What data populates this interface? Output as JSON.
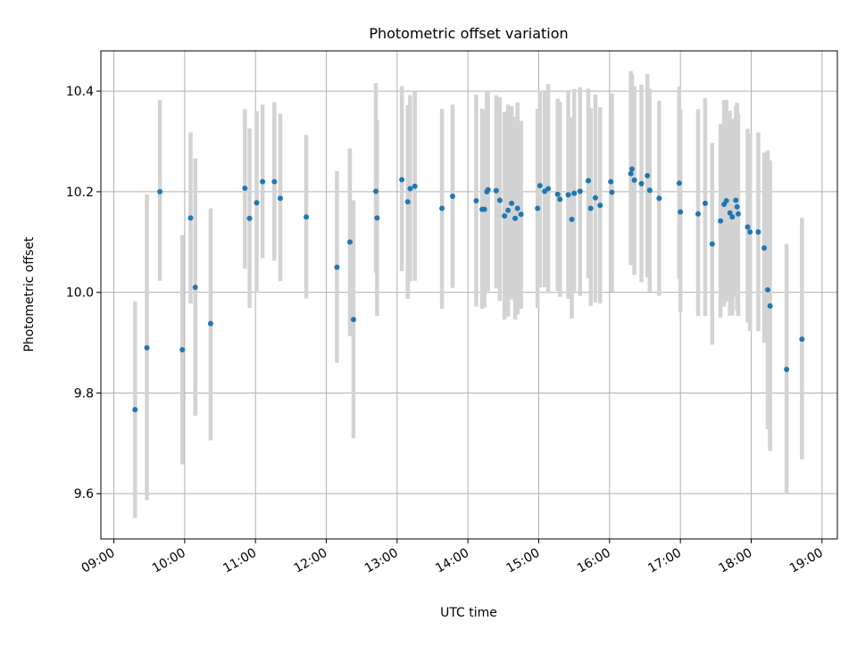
{
  "chart_data": {
    "type": "scatter",
    "title": "Photometric offset variation",
    "xlabel": "UTC time",
    "ylabel": "Photometric offset",
    "xlim": [
      "08:49",
      "19:13"
    ],
    "ylim": [
      9.51,
      10.48
    ],
    "grid": true,
    "x_tick_labels": [
      "09:00",
      "10:00",
      "11:00",
      "12:00",
      "13:00",
      "14:00",
      "15:00",
      "16:00",
      "17:00",
      "18:00",
      "19:00"
    ],
    "y_ticks": [
      9.6,
      9.8,
      10.0,
      10.2,
      10.4
    ],
    "y_tick_labels": [
      "9.6",
      "9.8",
      "10.0",
      "10.2",
      "10.4"
    ],
    "colors": {
      "point": "#1f77b4",
      "errorbar": "#d3d3d3",
      "grid": "#b0b0b0"
    },
    "series": [
      {
        "x": [
          "09:18",
          "09:28",
          "09:39",
          "09:58",
          "10:05",
          "10:09",
          "10:22",
          "10:51",
          "10:55",
          "11:01",
          "11:06",
          "11:16",
          "11:21",
          "11:43",
          "12:09",
          "12:20",
          "12:23",
          "12:42",
          "12:43",
          "13:04",
          "13:09",
          "13:11",
          "13:15",
          "13:38",
          "13:47",
          "14:07",
          "14:12",
          "14:14",
          "14:16",
          "14:17",
          "14:24",
          "14:27",
          "14:31",
          "14:34",
          "14:37",
          "14:40",
          "14:42",
          "14:45",
          "14:59",
          "15:01",
          "15:05",
          "15:08",
          "15:16",
          "15:18",
          "15:25",
          "15:28",
          "15:30",
          "15:35",
          "15:42",
          "15:44",
          "15:48",
          "15:52",
          "16:01",
          "16:02",
          "16:18",
          "16:19",
          "16:21",
          "16:27",
          "16:32",
          "16:34",
          "16:42",
          "16:59",
          "17:00",
          "17:15",
          "17:21",
          "17:27",
          "17:34",
          "17:37",
          "17:39",
          "17:42",
          "17:44",
          "17:47",
          "17:48",
          "17:49",
          "17:57",
          "17:59",
          "18:06",
          "18:11",
          "18:14",
          "18:16",
          "18:30",
          "18:43"
        ],
        "y": [
          9.767,
          9.89,
          10.2,
          9.886,
          10.148,
          10.01,
          9.938,
          10.207,
          10.147,
          10.178,
          10.22,
          10.22,
          10.187,
          10.15,
          10.05,
          10.1,
          9.946,
          10.201,
          10.148,
          10.224,
          10.18,
          10.206,
          10.211,
          10.167,
          10.191,
          10.182,
          10.165,
          10.165,
          10.2,
          10.204,
          10.202,
          10.183,
          10.152,
          10.163,
          10.177,
          10.147,
          10.167,
          10.155,
          10.167,
          10.212,
          10.201,
          10.206,
          10.195,
          10.185,
          10.194,
          10.145,
          10.197,
          10.201,
          10.222,
          10.167,
          10.188,
          10.173,
          10.22,
          10.199,
          10.236,
          10.245,
          10.223,
          10.216,
          10.232,
          10.203,
          10.187,
          10.217,
          10.16,
          10.156,
          10.177,
          10.096,
          10.142,
          10.175,
          10.182,
          10.158,
          10.15,
          10.183,
          10.17,
          10.156,
          10.13,
          10.12,
          10.12,
          10.088,
          10.005,
          9.973,
          9.847,
          9.907
        ],
        "err_low": [
          9.552,
          9.587,
          10.023,
          9.658,
          9.978,
          9.755,
          9.706,
          10.047,
          9.969,
          9.999,
          10.068,
          10.063,
          10.022,
          9.988,
          9.86,
          9.913,
          9.71,
          10.039,
          9.953,
          10.042,
          9.987,
          10.022,
          10.023,
          9.967,
          10.009,
          9.972,
          9.967,
          9.97,
          10.003,
          9.999,
          10.008,
          9.983,
          9.946,
          9.952,
          9.986,
          9.946,
          9.956,
          9.967,
          9.969,
          10.01,
          10.01,
          9.998,
          10.003,
          9.991,
          9.987,
          9.948,
          10.002,
          9.993,
          10.028,
          9.973,
          9.98,
          9.978,
          10.039,
          10.001,
          10.054,
          10.056,
          10.035,
          10.02,
          10.03,
          10.001,
          9.993,
          10.027,
          9.96,
          9.953,
          9.953,
          9.896,
          9.95,
          9.972,
          9.982,
          9.954,
          9.954,
          9.991,
          9.964,
          9.953,
          9.94,
          9.923,
          9.923,
          9.9,
          9.728,
          9.685,
          9.6,
          9.668
        ],
        "err_high": [
          9.982,
          10.195,
          10.383,
          10.114,
          10.318,
          10.266,
          10.167,
          10.364,
          10.326,
          10.36,
          10.373,
          10.378,
          10.355,
          10.313,
          10.241,
          10.286,
          10.183,
          10.416,
          10.343,
          10.41,
          10.372,
          10.392,
          10.4,
          10.365,
          10.373,
          10.393,
          10.365,
          10.362,
          10.398,
          10.398,
          10.392,
          10.388,
          10.359,
          10.373,
          10.37,
          10.349,
          10.378,
          10.341,
          10.365,
          10.401,
          10.399,
          10.414,
          10.385,
          10.379,
          10.402,
          10.348,
          10.404,
          10.408,
          10.405,
          10.366,
          10.393,
          10.368,
          10.363,
          10.396,
          10.44,
          10.434,
          10.41,
          10.413,
          10.434,
          10.405,
          10.381,
          10.409,
          10.364,
          10.364,
          10.386,
          10.297,
          10.335,
          10.382,
          10.383,
          10.361,
          10.345,
          10.371,
          10.377,
          10.355,
          10.325,
          10.316,
          10.318,
          10.278,
          10.282,
          10.262,
          10.096,
          10.148
        ]
      }
    ]
  }
}
